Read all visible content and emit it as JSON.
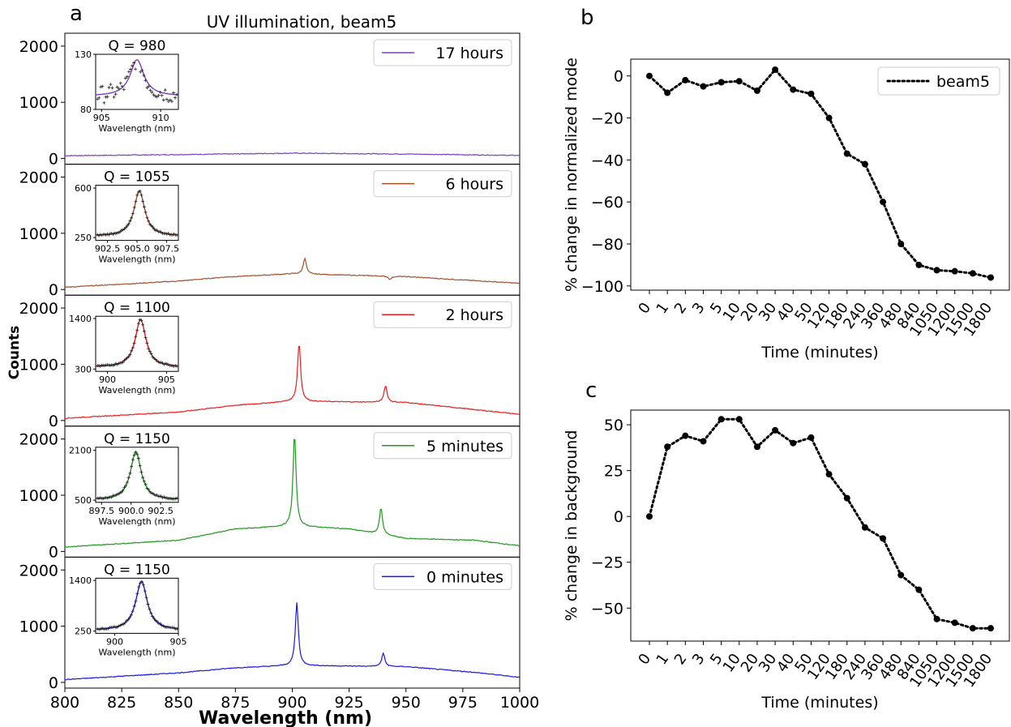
{
  "panel_labels": {
    "a": "a",
    "b": "b",
    "c": "c"
  },
  "panel_a": {
    "title": "UV illumination, beam5",
    "xlabel": "Wavelength (nm)",
    "ylabel": "Counts"
  },
  "chart_data": [
    {
      "type": "line",
      "id": "a",
      "title": "UV illumination, beam5",
      "xlabel": "Wavelength (nm)",
      "ylabel": "Counts",
      "xlim": [
        800,
        1000
      ],
      "xticks": [
        "800",
        "825",
        "850",
        "875",
        "900",
        "925",
        "950",
        "975",
        "1000"
      ],
      "ylim": [
        0,
        2200
      ],
      "yticks": [
        "0",
        "1000",
        "2000"
      ],
      "grid": false,
      "legend_position": "top-right",
      "subplots": [
        {
          "legend": "17 hours",
          "color": "#7d3ec0",
          "background": [
            [
              800,
              50
            ],
            [
              850,
              70
            ],
            [
              900,
              95
            ],
            [
              950,
              80
            ],
            [
              1000,
              55
            ]
          ],
          "peaks": [],
          "inset": {
            "q_label": "Q = 980",
            "xticks": [
              "905",
              "910"
            ],
            "xlim": [
              904.5,
              911.5
            ],
            "yticks": [
              "80",
              "130"
            ],
            "ylim": [
              80,
              130
            ],
            "center": 908.0,
            "width": 0.7,
            "base": 92,
            "peak": 125,
            "scatter": true
          },
          "inset_xlabel": "Wavelength (nm)"
        },
        {
          "legend": "6 hours",
          "color": "#a0522d",
          "background": [
            [
              800,
              40
            ],
            [
              850,
              150
            ],
            [
              870,
              220
            ],
            [
              900,
              280
            ],
            [
              950,
              230
            ],
            [
              1000,
              110
            ]
          ],
          "peaks": [
            [
              905.5,
              560
            ],
            [
              943,
              180
            ]
          ],
          "inset": {
            "q_label": "Q = 1055",
            "xticks": [
              "902.5",
              "905.0",
              "907.5"
            ],
            "xlim": [
              901.5,
              908.5
            ],
            "yticks": [
              "250",
              "600"
            ],
            "ylim": [
              230,
              620
            ],
            "center": 905.2,
            "width": 0.55,
            "base": 260,
            "peak": 580,
            "scatter": false
          },
          "inset_xlabel": "Wavelength (nm)"
        },
        {
          "legend": "2 hours",
          "color": "#ee1c1c",
          "background": [
            [
              800,
              40
            ],
            [
              850,
              150
            ],
            [
              875,
              270
            ],
            [
              900,
              340
            ],
            [
              950,
              320
            ],
            [
              1000,
              110
            ]
          ],
          "peaks": [
            [
              903,
              1380
            ],
            [
              941,
              620
            ]
          ],
          "inset": {
            "q_label": "Q = 1100",
            "xticks": [
              "900",
              "905"
            ],
            "xlim": [
              899,
              906
            ],
            "yticks": [
              "300",
              "1400"
            ],
            "ylim": [
              250,
              1450
            ],
            "center": 902.8,
            "width": 0.55,
            "base": 340,
            "peak": 1380,
            "scatter": false
          },
          "inset_xlabel": "Wavelength (nm)"
        },
        {
          "legend": "5 minutes",
          "color": "#1f9a1f",
          "background": [
            [
              800,
              80
            ],
            [
              850,
              200
            ],
            [
              875,
              400
            ],
            [
              900,
              450
            ],
            [
              925,
              400
            ],
            [
              950,
              230
            ],
            [
              980,
              200
            ],
            [
              1000,
              100
            ]
          ],
          "peaks": [
            [
              901,
              2080
            ],
            [
              939,
              770
            ]
          ],
          "inset": {
            "q_label": "Q = 1150",
            "xticks": [
              "897.5",
              "900.0",
              "902.5"
            ],
            "xlim": [
              897,
              904
            ],
            "yticks": [
              "500",
              "2100"
            ],
            "ylim": [
              430,
              2200
            ],
            "center": 900.4,
            "width": 0.55,
            "base": 510,
            "peak": 2050,
            "scatter": false
          },
          "inset_xlabel": "Wavelength (nm)"
        },
        {
          "legend": "0 minutes",
          "color": "#1818e6",
          "background": [
            [
              800,
              50
            ],
            [
              850,
              170
            ],
            [
              875,
              260
            ],
            [
              900,
              300
            ],
            [
              950,
              280
            ],
            [
              980,
              180
            ],
            [
              1000,
              90
            ]
          ],
          "peaks": [
            [
              902,
              1420
            ],
            [
              940,
              520
            ]
          ],
          "inset": {
            "q_label": "Q = 1150",
            "xticks": [
              "900",
              "905"
            ],
            "xlim": [
              898.5,
              905
            ],
            "yticks": [
              "250",
              "1400"
            ],
            "ylim": [
              200,
              1450
            ],
            "center": 902.1,
            "width": 0.55,
            "base": 270,
            "peak": 1380,
            "scatter": false
          },
          "inset_xlabel": "Wavelength (nm)"
        }
      ]
    },
    {
      "type": "line",
      "id": "b",
      "xlabel": "Time (minutes)",
      "ylabel": "% change in normalized mode",
      "categories": [
        "0",
        "1",
        "2",
        "3",
        "5",
        "10",
        "20",
        "30",
        "40",
        "50",
        "120",
        "180",
        "240",
        "360",
        "480",
        "840",
        "1050",
        "1200",
        "1500",
        "1800"
      ],
      "series": [
        {
          "name": "beam5",
          "values": [
            0,
            -8,
            -2,
            -5,
            -3,
            -2.5,
            -7,
            3,
            -6.5,
            -8.5,
            -20,
            -37,
            -42,
            -60,
            -80,
            -90,
            -92.5,
            -93,
            -94,
            -96
          ],
          "color": "#000000",
          "style": "dotted"
        }
      ],
      "ylim": [
        -102,
        8
      ],
      "yticks": [
        "0",
        "−20",
        "−40",
        "−60",
        "−80",
        "−100"
      ],
      "grid": false,
      "legend_position": "top-right"
    },
    {
      "type": "line",
      "id": "c",
      "xlabel": "Time (minutes)",
      "ylabel": "% change in background",
      "categories": [
        "0",
        "1",
        "2",
        "3",
        "5",
        "10",
        "20",
        "30",
        "40",
        "50",
        "120",
        "180",
        "240",
        "360",
        "480",
        "840",
        "1050",
        "1200",
        "1500",
        "1800"
      ],
      "series": [
        {
          "values": [
            0,
            38,
            44,
            41,
            53,
            53,
            38,
            47,
            40,
            43,
            23,
            10,
            -6,
            -12,
            -32,
            -40,
            -56,
            -58,
            -61,
            -61
          ],
          "color": "#000000",
          "style": "dotted"
        }
      ],
      "ylim": [
        -68,
        58
      ],
      "yticks": [
        "50",
        "25",
        "0",
        "−25",
        "−50"
      ],
      "grid": false
    }
  ]
}
